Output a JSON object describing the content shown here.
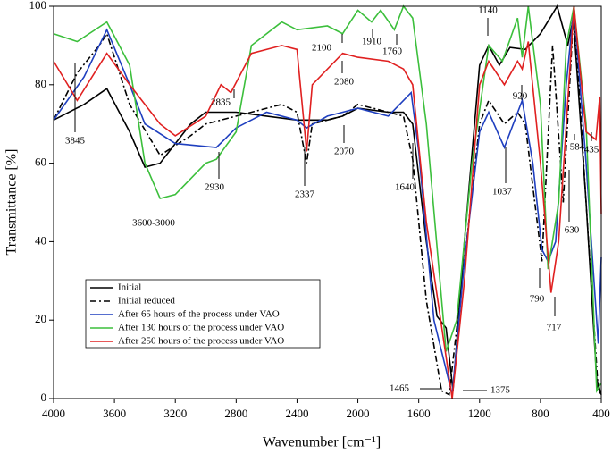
{
  "chart_data": {
    "type": "line",
    "xlabel": "Wavenumber [cm⁻¹]",
    "ylabel": "Transmittance [%]",
    "xlim": [
      4000,
      400
    ],
    "ylim": [
      0,
      100
    ],
    "xticks": [
      4000,
      3600,
      3200,
      2800,
      2400,
      2000,
      1600,
      1200,
      800,
      400
    ],
    "yticks": [
      0,
      20,
      40,
      60,
      80,
      100
    ],
    "legend": "lower left",
    "series": [
      {
        "name": "Initial",
        "color": "#000000",
        "dash": "solid",
        "x": [
          4000,
          3800,
          3650,
          3500,
          3400,
          3300,
          3100,
          3000,
          2800,
          2600,
          2400,
          2200,
          2100,
          2000,
          1800,
          1700,
          1640,
          1550,
          1480,
          1420,
          1375,
          1300,
          1200,
          1140,
          1070,
          1000,
          900,
          800,
          690,
          620,
          584,
          500,
          430,
          400
        ],
        "values": [
          71,
          75,
          79,
          68,
          59,
          60,
          70,
          73,
          73,
          72,
          71,
          71,
          72,
          74,
          73,
          73,
          70,
          40,
          21,
          18,
          2,
          40,
          85,
          90,
          85,
          89.5,
          89,
          93,
          100,
          90,
          97,
          50,
          5,
          1
        ]
      },
      {
        "name": "Initial reduced",
        "color": "#000000",
        "dash": "dashdot",
        "x": [
          4000,
          3845,
          3700,
          3650,
          3500,
          3300,
          3100,
          3000,
          2800,
          2500,
          2400,
          2337,
          2300,
          2100,
          2000,
          1800,
          1700,
          1640,
          1550,
          1450,
          1400,
          1300,
          1200,
          1140,
          1037,
          950,
          900,
          790,
          720,
          650,
          580,
          500,
          420,
          400
        ],
        "values": [
          71,
          83,
          90,
          93,
          75,
          62,
          67,
          70,
          72,
          75,
          73,
          60,
          70,
          72,
          75,
          73,
          72,
          61,
          25,
          2,
          1,
          35,
          70,
          76,
          70,
          73,
          70,
          35,
          90,
          50,
          100,
          50,
          2,
          1
        ]
      },
      {
        "name": "After 65 hours of the process under VAO",
        "color": "#1f3fbf",
        "dash": "solid",
        "x": [
          4000,
          3800,
          3650,
          3500,
          3400,
          3200,
          2930,
          2800,
          2600,
          2400,
          2337,
          2200,
          2000,
          1800,
          1650,
          1600,
          1500,
          1380,
          1300,
          1200,
          1140,
          1037,
          920,
          850,
          790,
          750,
          700,
          630,
          580,
          500,
          420,
          400
        ],
        "values": [
          71,
          82,
          94,
          80,
          70,
          65,
          64,
          69,
          73,
          71,
          69,
          72,
          74,
          72,
          78,
          63,
          20,
          1,
          35,
          68,
          73,
          64,
          76,
          60,
          38,
          35,
          40,
          80,
          100,
          60,
          14,
          36
        ]
      },
      {
        "name": "After 130 hours of the process under VAO",
        "color": "#3cbf3c",
        "dash": "solid",
        "x": [
          4000,
          3845,
          3650,
          3500,
          3400,
          3300,
          3200,
          3000,
          2930,
          2800,
          2700,
          2500,
          2400,
          2200,
          2100,
          2000,
          1910,
          1850,
          1760,
          1700,
          1640,
          1550,
          1420,
          1350,
          1250,
          1140,
          1050,
          950,
          920,
          880,
          800,
          750,
          680,
          630,
          580,
          500,
          430,
          400
        ],
        "values": [
          93,
          91,
          96,
          85,
          60,
          51,
          52,
          60,
          61,
          68,
          90,
          96,
          94,
          95,
          93,
          99,
          96,
          99,
          94,
          100,
          97,
          70,
          12,
          20,
          60,
          90,
          86,
          97,
          87,
          100,
          75,
          33,
          50,
          90,
          100,
          70,
          2,
          4
        ]
      },
      {
        "name": "After 250 hours of the process under VAO",
        "color": "#e02020",
        "dash": "solid",
        "x": [
          4000,
          3845,
          3650,
          3500,
          3300,
          3200,
          3000,
          2900,
          2835,
          2700,
          2500,
          2400,
          2337,
          2300,
          2100,
          2000,
          1800,
          1700,
          1640,
          1550,
          1380,
          1300,
          1200,
          1140,
          1037,
          950,
          920,
          880,
          800,
          730,
          680,
          580,
          500,
          435,
          410,
          400
        ],
        "values": [
          86,
          76,
          88,
          80,
          70,
          67,
          72,
          80,
          78,
          88,
          90,
          89,
          63,
          80,
          88,
          87,
          86,
          84,
          80,
          45,
          0,
          30,
          80,
          86,
          80,
          86,
          84,
          91,
          60,
          27,
          40,
          100,
          68,
          66,
          77,
          47
        ]
      }
    ],
    "annotations": [
      "3845",
      "2835",
      "2930",
      "3600-3000",
      "2337",
      "2100",
      "1910",
      "1760",
      "2080",
      "2070",
      "1640",
      "1465",
      "1375",
      "1140",
      "1037",
      "920",
      "790",
      "717",
      "630",
      "584",
      "435"
    ]
  }
}
